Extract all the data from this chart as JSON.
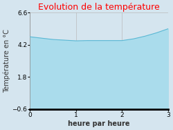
{
  "title": "Evolution de la température",
  "xlabel": "heure par heure",
  "ylabel": "Température en °C",
  "x": [
    0,
    0.25,
    0.5,
    0.75,
    1.0,
    1.25,
    1.5,
    1.75,
    2.0,
    2.25,
    2.5,
    2.75,
    3.0
  ],
  "y": [
    4.8,
    4.7,
    4.6,
    4.55,
    4.5,
    4.52,
    4.52,
    4.52,
    4.52,
    4.65,
    4.85,
    5.1,
    5.4
  ],
  "fill_color": "#aadcec",
  "line_color": "#5bb8d4",
  "background_color": "#d5e5ef",
  "plot_bg_color": "#d5e5ef",
  "title_color": "#ff0000",
  "ylim": [
    -0.6,
    6.6
  ],
  "xlim": [
    0,
    3
  ],
  "yticks": [
    -0.6,
    1.8,
    4.2,
    6.6
  ],
  "xticks": [
    0,
    1,
    2,
    3
  ],
  "title_fontsize": 9,
  "label_fontsize": 7,
  "tick_fontsize": 6.5
}
